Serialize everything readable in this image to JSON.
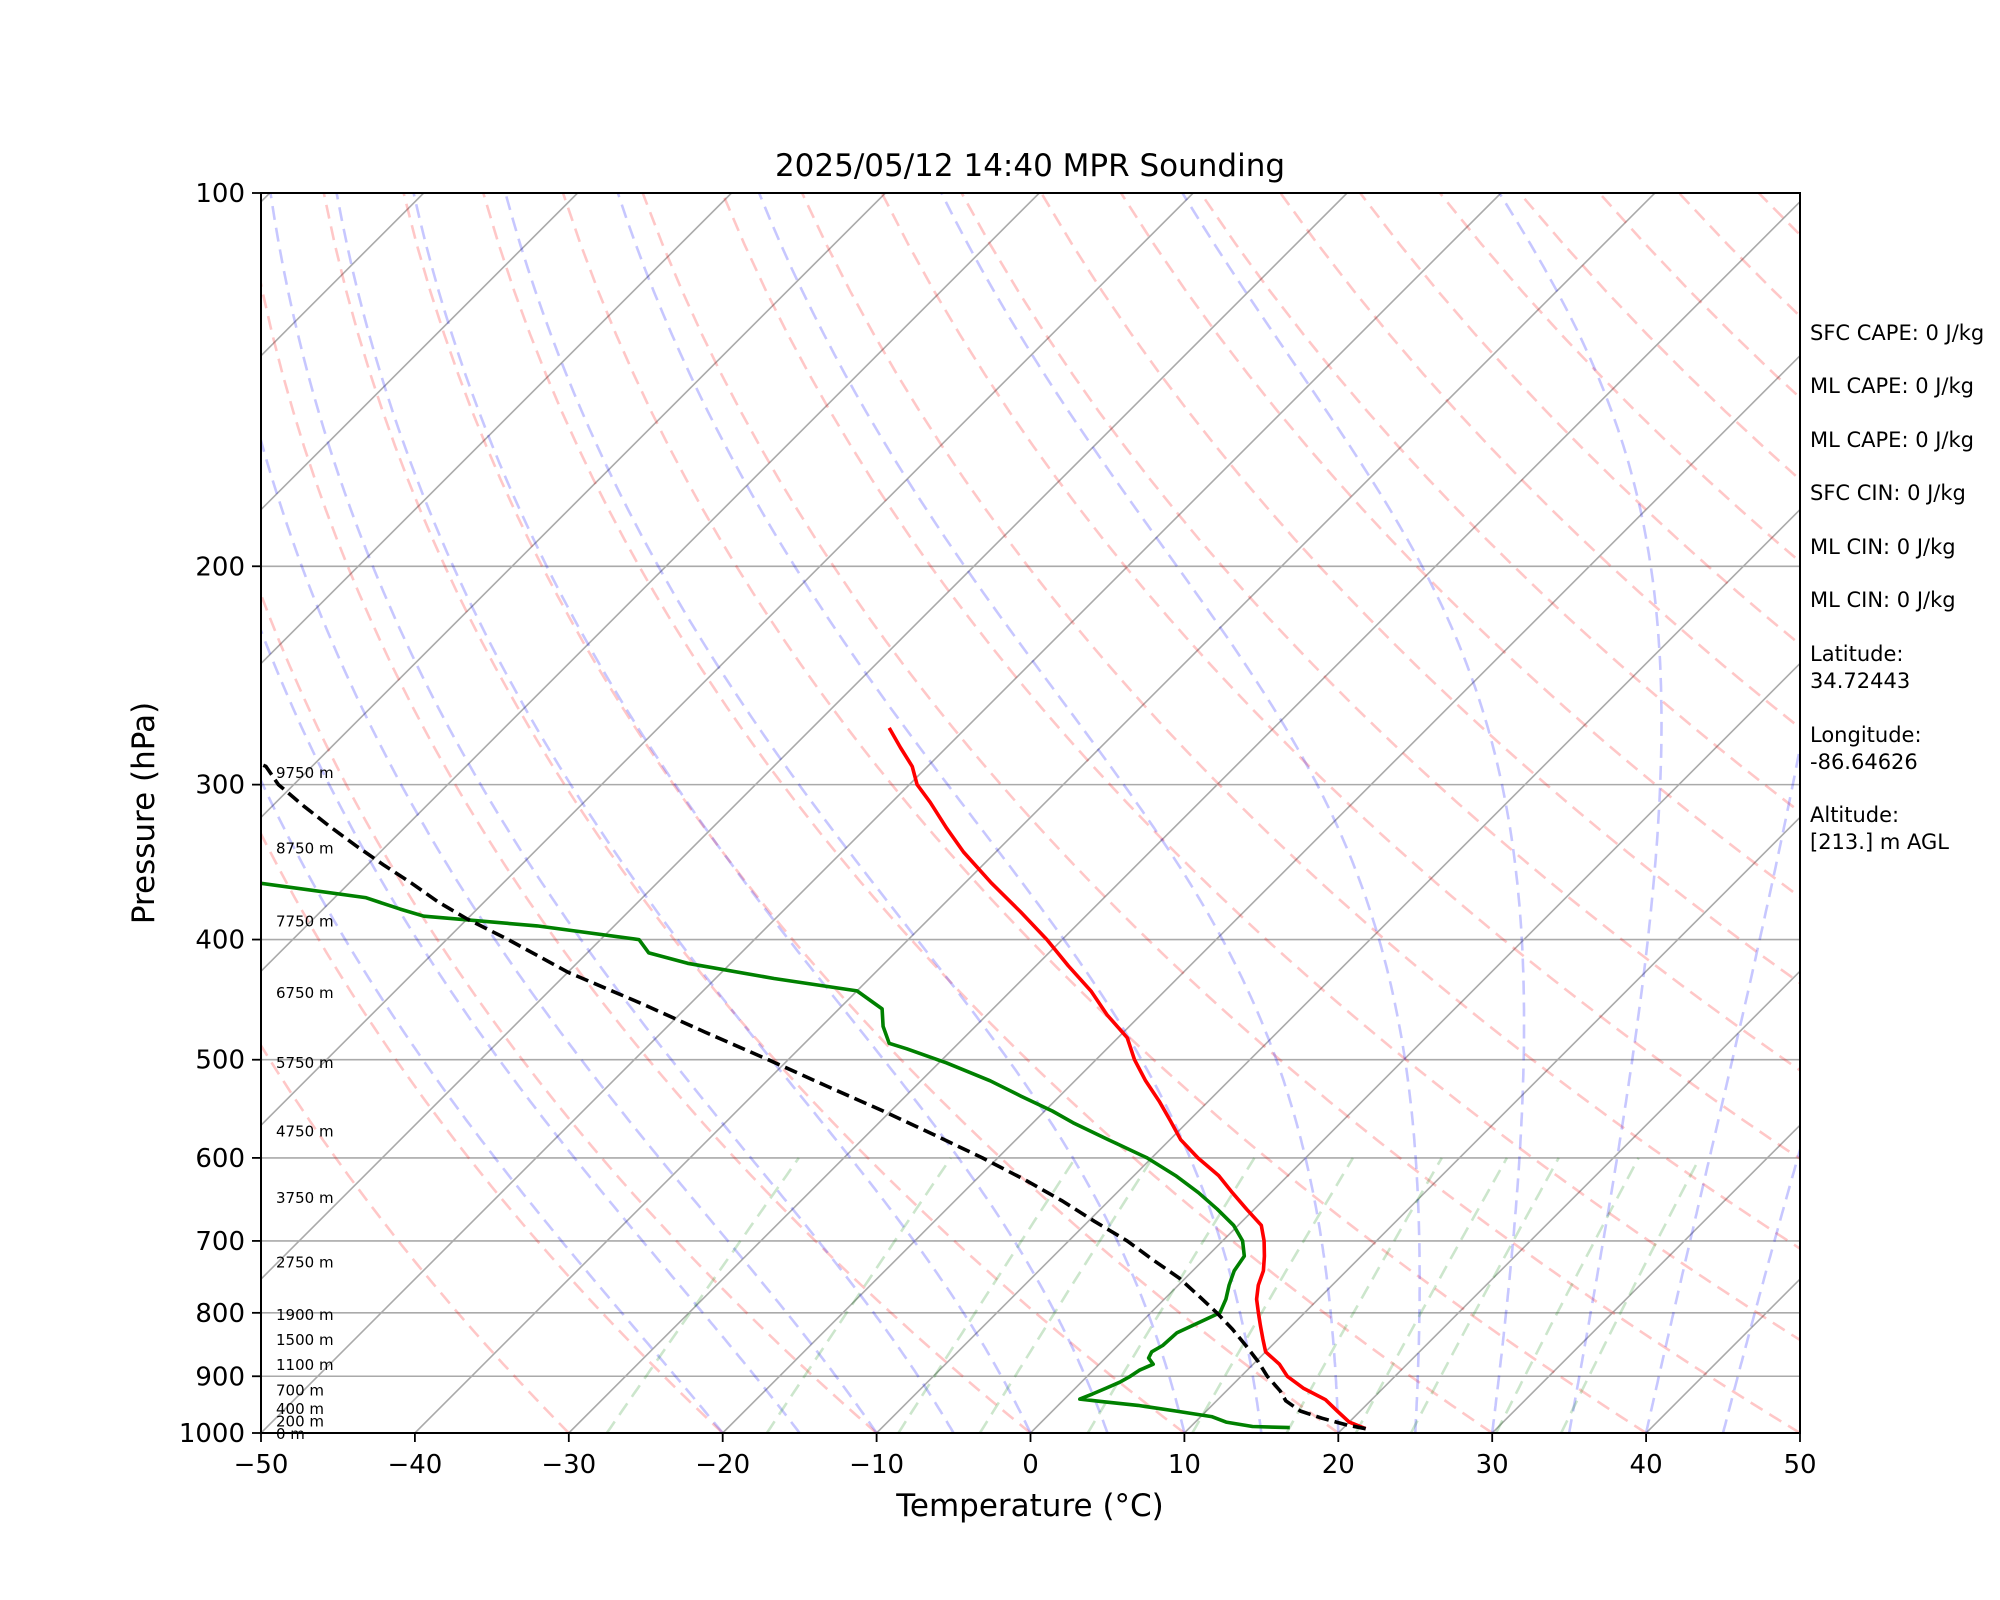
{
  "chart_data": {
    "type": "line",
    "title": "2025/05/12 14:40 MPR Sounding",
    "xlabel": "Temperature (°C)",
    "ylabel": "Pressure (hPa)",
    "xlim": [
      -50,
      50
    ],
    "ylim": [
      1000,
      100
    ],
    "yscale": "log",
    "skew": true,
    "x_ticks": [
      "−50",
      "−40",
      "−30",
      "−20",
      "−10",
      "0",
      "10",
      "20",
      "30",
      "40",
      "50"
    ],
    "y_ticks": [
      "100",
      "200",
      "300",
      "400",
      "500",
      "600",
      "700",
      "800",
      "900",
      "1000"
    ],
    "height_labels": [
      {
        "text": "0 m",
        "p": 1000
      },
      {
        "text": "200 m",
        "p": 977
      },
      {
        "text": "400 m",
        "p": 955
      },
      {
        "text": "700 m",
        "p": 922
      },
      {
        "text": "1100 m",
        "p": 880
      },
      {
        "text": "1500 m",
        "p": 840
      },
      {
        "text": "1900 m",
        "p": 802
      },
      {
        "text": "2750 m",
        "p": 727
      },
      {
        "text": "3750 m",
        "p": 645
      },
      {
        "text": "4750 m",
        "p": 570
      },
      {
        "text": "5750 m",
        "p": 502
      },
      {
        "text": "6750 m",
        "p": 441
      },
      {
        "text": "7750 m",
        "p": 386
      },
      {
        "text": "8750 m",
        "p": 337
      },
      {
        "text": "9750 m",
        "p": 293
      }
    ],
    "series": [
      {
        "role": "temperature",
        "color": "#ff0000",
        "points": [
          [
            21.5,
            992
          ],
          [
            20,
            980
          ],
          [
            18.5,
            960
          ],
          [
            17,
            940
          ],
          [
            14.8,
            920
          ],
          [
            13,
            900
          ],
          [
            11.7,
            880
          ],
          [
            10,
            860
          ],
          [
            9,
            840
          ],
          [
            8,
            820
          ],
          [
            7,
            800
          ],
          [
            6,
            780
          ],
          [
            5.2,
            760
          ],
          [
            4.6,
            740
          ],
          [
            3.7,
            720
          ],
          [
            2.7,
            700
          ],
          [
            1.5,
            680
          ],
          [
            -0.5,
            660
          ],
          [
            -2.5,
            640
          ],
          [
            -4.5,
            620
          ],
          [
            -7,
            600
          ],
          [
            -9.3,
            580
          ],
          [
            -11.2,
            560
          ],
          [
            -13.2,
            540
          ],
          [
            -15.4,
            520
          ],
          [
            -17.5,
            500
          ],
          [
            -19.4,
            480
          ],
          [
            -22.2,
            460
          ],
          [
            -24.8,
            440
          ],
          [
            -27.9,
            420
          ],
          [
            -31,
            400
          ],
          [
            -34.5,
            380
          ],
          [
            -38.3,
            360
          ],
          [
            -42.1,
            340
          ],
          [
            -44.8,
            325
          ],
          [
            -47.5,
            310
          ],
          [
            -49.5,
            300
          ],
          [
            -51,
            290
          ],
          [
            -53,
            280
          ],
          [
            -55,
            270
          ]
        ]
      },
      {
        "role": "dewpoint",
        "color": "#008000",
        "points": [
          [
            16.5,
            990
          ],
          [
            14,
            988
          ],
          [
            12,
            980
          ],
          [
            10.7,
            970
          ],
          [
            8,
            960
          ],
          [
            5.2,
            950
          ],
          [
            2.5,
            943
          ],
          [
            1,
            939
          ],
          [
            1.5,
            930
          ],
          [
            2,
            920
          ],
          [
            2.5,
            910
          ],
          [
            2.8,
            900
          ],
          [
            3,
            890
          ],
          [
            3.5,
            880
          ],
          [
            2.8,
            870
          ],
          [
            2.6,
            860
          ],
          [
            2.9,
            850
          ],
          [
            3,
            830
          ],
          [
            4,
            810
          ],
          [
            4.5,
            800
          ],
          [
            4,
            780
          ],
          [
            3.3,
            760
          ],
          [
            2.7,
            740
          ],
          [
            2.4,
            720
          ],
          [
            1.3,
            700
          ],
          [
            -0.3,
            680
          ],
          [
            -2.4,
            660
          ],
          [
            -4.7,
            640
          ],
          [
            -7.3,
            620
          ],
          [
            -10.3,
            600
          ],
          [
            -14,
            580
          ],
          [
            -17.4,
            562
          ],
          [
            -19.5,
            550
          ],
          [
            -22.5,
            535
          ],
          [
            -25.5,
            520
          ],
          [
            -29.5,
            503
          ],
          [
            -33,
            490
          ],
          [
            -34.5,
            485
          ],
          [
            -36,
            470
          ],
          [
            -37.2,
            455
          ],
          [
            -40,
            440
          ],
          [
            -46.2,
            430
          ],
          [
            -52.8,
            418
          ],
          [
            -56,
            410
          ],
          [
            -57.5,
            400
          ],
          [
            -65,
            390
          ],
          [
            -73,
            383
          ],
          [
            -75,
            378
          ],
          [
            -78,
            370
          ],
          [
            -86,
            360
          ],
          [
            -92,
            350
          ],
          [
            -100,
            348
          ]
        ]
      },
      {
        "role": "parcel",
        "color": "#000000",
        "dash": true,
        "points": [
          [
            21.5,
            992
          ],
          [
            20,
            985
          ],
          [
            18,
            973
          ],
          [
            16.1,
            960
          ],
          [
            14.5,
            942
          ],
          [
            13.5,
            925
          ],
          [
            11.7,
            900
          ],
          [
            10.1,
            875
          ],
          [
            8.3,
            850
          ],
          [
            6.4,
            825
          ],
          [
            4.3,
            800
          ],
          [
            2,
            775
          ],
          [
            -0.4,
            750
          ],
          [
            -3.3,
            725
          ],
          [
            -6.2,
            700
          ],
          [
            -9.6,
            675
          ],
          [
            -13,
            650
          ],
          [
            -16.8,
            625
          ],
          [
            -21,
            600
          ],
          [
            -25.6,
            575
          ],
          [
            -30.5,
            550
          ],
          [
            -35.8,
            525
          ],
          [
            -41.3,
            500
          ],
          [
            -47.2,
            475
          ],
          [
            -53.3,
            450
          ],
          [
            -60,
            425
          ],
          [
            -66,
            400
          ],
          [
            -70,
            385
          ],
          [
            -73,
            373
          ],
          [
            -76,
            360
          ],
          [
            -79,
            348
          ],
          [
            -82,
            336
          ],
          [
            -85,
            324
          ],
          [
            -88,
            312
          ],
          [
            -91,
            300
          ],
          [
            -93,
            290
          ],
          [
            -97,
            280
          ],
          [
            -100,
            270
          ]
        ]
      }
    ],
    "annotations": [
      "SFC CAPE: 0 J/kg",
      "ML CAPE: 0 J/kg",
      "ML CAPE: 0 J/kg",
      "SFC CIN: 0 J/kg",
      "ML CIN: 0 J/kg",
      "ML CIN: 0 J/kg",
      "Latitude:",
      "34.72443",
      "Longitude:",
      "-86.64626",
      "Altitude:",
      "[213.] m AGL"
    ]
  }
}
